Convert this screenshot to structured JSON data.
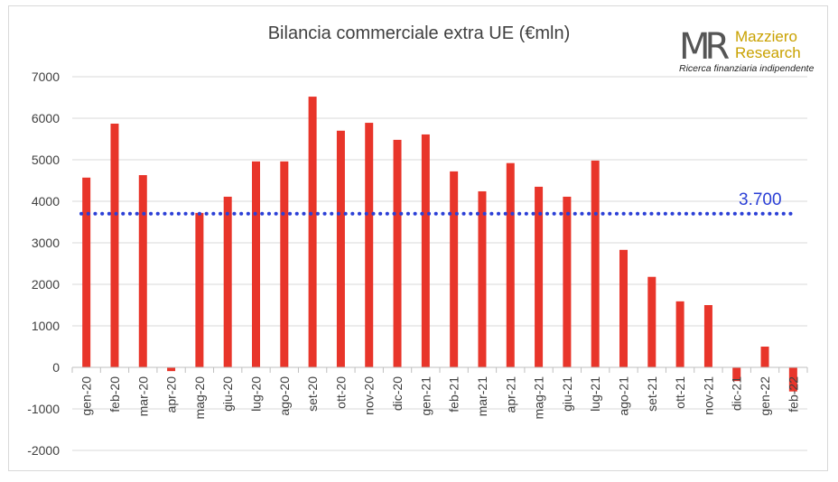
{
  "chart_data": {
    "type": "bar",
    "title": "Bilancia commerciale extra UE (€mln)",
    "xlabel": "",
    "ylabel": "",
    "ylim": [
      -2000,
      7000
    ],
    "yticks": [
      7000,
      6000,
      5000,
      4000,
      3000,
      2000,
      1000,
      0,
      -1000,
      -2000
    ],
    "grid": true,
    "bar_color": "#e8352a",
    "categories": [
      "gen-20",
      "feb-20",
      "mar-20",
      "apr-20",
      "mag-20",
      "giu-20",
      "lug-20",
      "ago-20",
      "set-20",
      "ott-20",
      "nov-20",
      "dic-20",
      "gen-21",
      "feb-21",
      "mar-21",
      "apr-21",
      "mag-21",
      "giu-21",
      "lug-21",
      "ago-21",
      "set-21",
      "ott-21",
      "nov-21",
      "dic-21",
      "gen-22",
      "feb-22"
    ],
    "values": [
      4570,
      5870,
      4630,
      -90,
      3720,
      4110,
      4960,
      4960,
      6520,
      5700,
      5890,
      5480,
      5610,
      4720,
      4240,
      4920,
      4350,
      4110,
      4980,
      2830,
      2180,
      1590,
      1500,
      -330,
      500,
      -580
    ],
    "reference_line": {
      "value": 3700,
      "label": "3.700",
      "color": "#2b3fd6",
      "style": "dotted"
    }
  },
  "logo": {
    "mark": "MR",
    "name_line1": "Mazziero",
    "name_line2": "Research",
    "tagline": "Ricerca finanziaria indipendente"
  }
}
